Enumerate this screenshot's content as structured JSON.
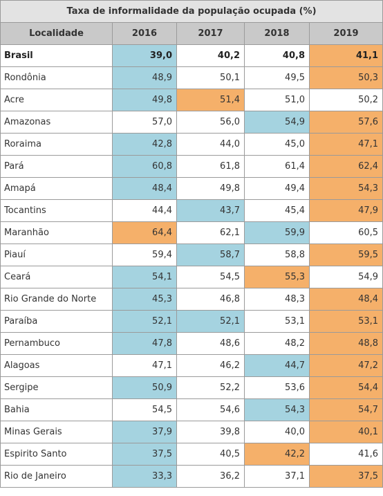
{
  "title": "Taxa de informalidade da população ocupada (%)",
  "headers": [
    "Localidade",
    "2016",
    "2017",
    "2018",
    "2019"
  ],
  "highlight_colors": {
    "lowest": "#a5d3e0",
    "highest": "#f5b06a"
  },
  "rows": [
    {
      "loc": "Brasil",
      "bold": true,
      "vals": [
        "39,0",
        "40,2",
        "40,8",
        "41,1"
      ],
      "hl": [
        "lowest",
        "",
        "",
        "highest"
      ]
    },
    {
      "loc": "Rondônia",
      "vals": [
        "48,9",
        "50,1",
        "49,5",
        "50,3"
      ],
      "hl": [
        "lowest",
        "",
        "",
        "highest"
      ]
    },
    {
      "loc": "Acre",
      "vals": [
        "49,8",
        "51,4",
        "51,0",
        "50,2"
      ],
      "hl": [
        "lowest",
        "highest",
        "",
        ""
      ]
    },
    {
      "loc": "Amazonas",
      "vals": [
        "57,0",
        "56,0",
        "54,9",
        "57,6"
      ],
      "hl": [
        "",
        "",
        "lowest",
        "highest"
      ]
    },
    {
      "loc": "Roraima",
      "vals": [
        "42,8",
        "44,0",
        "45,0",
        "47,1"
      ],
      "hl": [
        "lowest",
        "",
        "",
        "highest"
      ]
    },
    {
      "loc": "Pará",
      "vals": [
        "60,8",
        "61,8",
        "61,4",
        "62,4"
      ],
      "hl": [
        "lowest",
        "",
        "",
        "highest"
      ]
    },
    {
      "loc": "Amapá",
      "vals": [
        "48,4",
        "49,8",
        "49,4",
        "54,3"
      ],
      "hl": [
        "lowest",
        "",
        "",
        "highest"
      ]
    },
    {
      "loc": "Tocantins",
      "vals": [
        "44,4",
        "43,7",
        "45,4",
        "47,9"
      ],
      "hl": [
        "",
        "lowest",
        "",
        "highest"
      ]
    },
    {
      "loc": "Maranhão",
      "vals": [
        "64,4",
        "62,1",
        "59,9",
        "60,5"
      ],
      "hl": [
        "highest",
        "",
        "lowest",
        ""
      ]
    },
    {
      "loc": "Piauí",
      "vals": [
        "59,4",
        "58,7",
        "58,8",
        "59,5"
      ],
      "hl": [
        "",
        "lowest",
        "",
        "highest"
      ]
    },
    {
      "loc": "Ceará",
      "vals": [
        "54,1",
        "54,5",
        "55,3",
        "54,9"
      ],
      "hl": [
        "lowest",
        "",
        "highest",
        ""
      ]
    },
    {
      "loc": "Rio Grande do Norte",
      "vals": [
        "45,3",
        "46,8",
        "48,3",
        "48,4"
      ],
      "hl": [
        "lowest",
        "",
        "",
        "highest"
      ]
    },
    {
      "loc": "Paraíba",
      "vals": [
        "52,1",
        "52,1",
        "53,1",
        "53,1"
      ],
      "hl": [
        "lowest",
        "lowest",
        "",
        "highest"
      ]
    },
    {
      "loc": "Pernambuco",
      "vals": [
        "47,8",
        "48,6",
        "48,2",
        "48,8"
      ],
      "hl": [
        "lowest",
        "",
        "",
        "highest"
      ]
    },
    {
      "loc": "Alagoas",
      "vals": [
        "47,1",
        "46,2",
        "44,7",
        "47,2"
      ],
      "hl": [
        "",
        "",
        "lowest",
        "highest"
      ]
    },
    {
      "loc": "Sergipe",
      "vals": [
        "50,9",
        "52,2",
        "53,6",
        "54,4"
      ],
      "hl": [
        "lowest",
        "",
        "",
        "highest"
      ]
    },
    {
      "loc": "Bahia",
      "vals": [
        "54,5",
        "54,6",
        "54,3",
        "54,7"
      ],
      "hl": [
        "",
        "",
        "lowest",
        "highest"
      ]
    },
    {
      "loc": "Minas Gerais",
      "vals": [
        "37,9",
        "39,8",
        "40,0",
        "40,1"
      ],
      "hl": [
        "lowest",
        "",
        "",
        "highest"
      ]
    },
    {
      "loc": "Espirito Santo",
      "vals": [
        "37,5",
        "40,5",
        "42,2",
        "41,6"
      ],
      "hl": [
        "lowest",
        "",
        "highest",
        ""
      ]
    },
    {
      "loc": "Rio de Janeiro",
      "vals": [
        "33,3",
        "36,2",
        "37,1",
        "37,5"
      ],
      "hl": [
        "lowest",
        "",
        "",
        "highest"
      ]
    }
  ]
}
